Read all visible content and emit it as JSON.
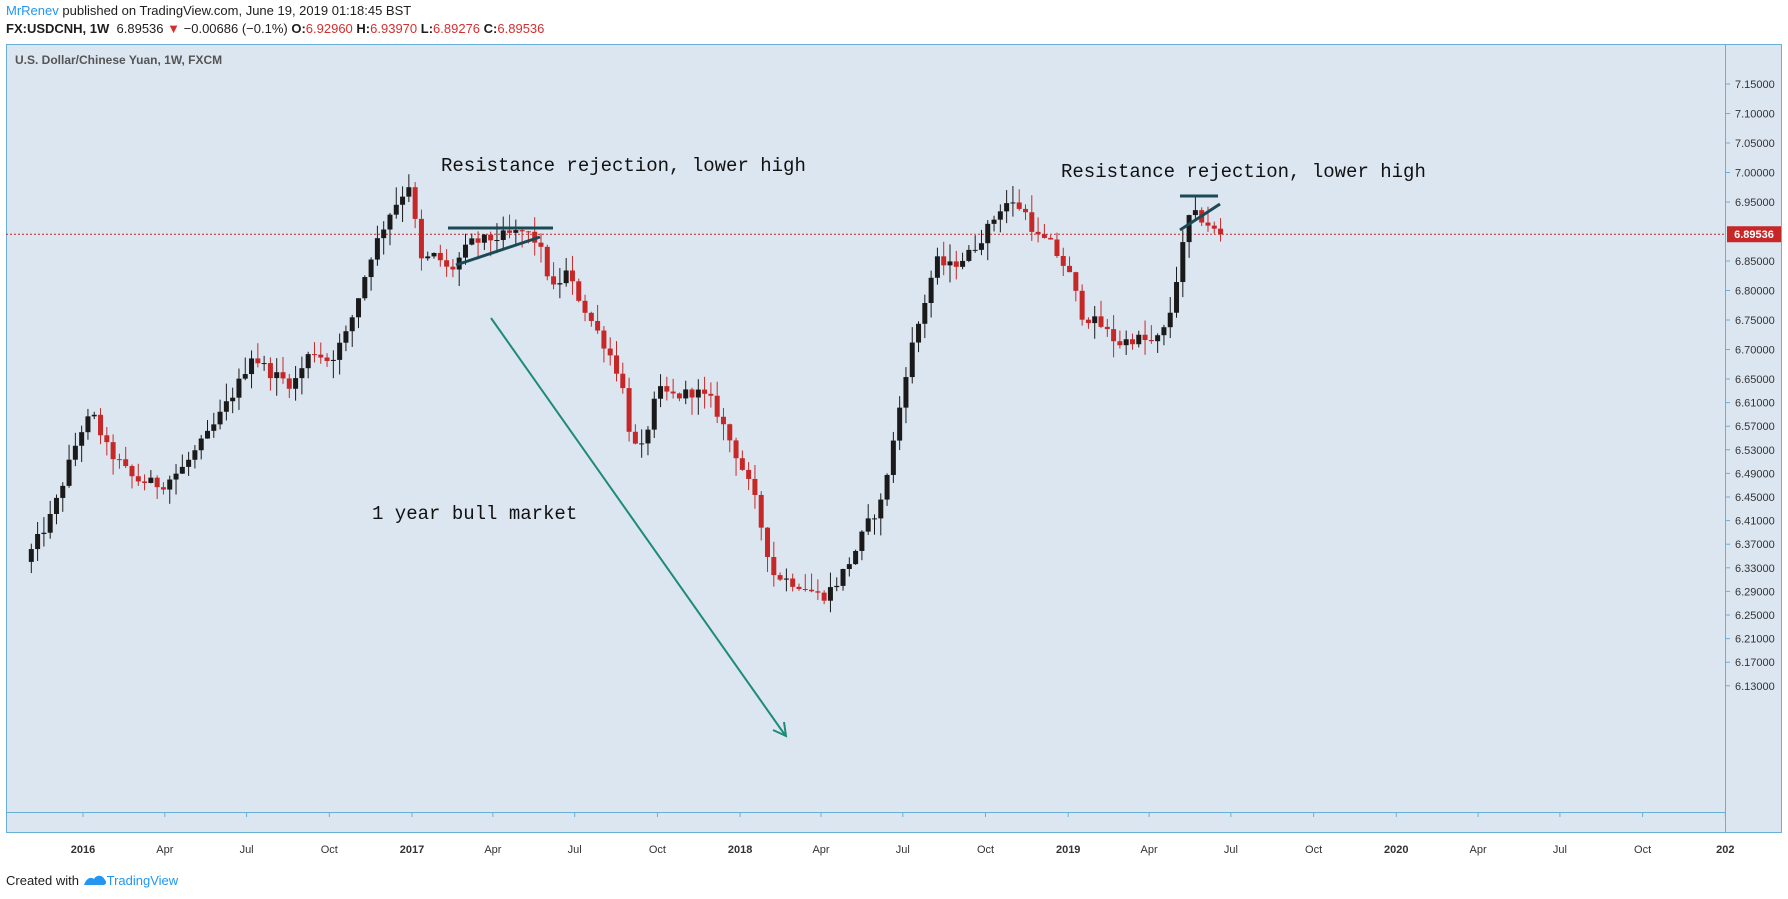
{
  "header": {
    "author": "MrRenev",
    "published": "published on TradingView.com, June 19, 2019 01:18:45 BST",
    "symbol": "FX:USDCNH, 1W",
    "last": "6.89536",
    "change": "−0.00686 (−0.1%)",
    "o_label": "O:",
    "o": "6.92960",
    "h_label": "H:",
    "h": "6.93970",
    "l_label": "L:",
    "l": "6.89276",
    "c_label": "C:",
    "c": "6.89536"
  },
  "footer": {
    "created_with": "Created with",
    "brand": "TradingView"
  },
  "colors": {
    "background": "#dce6f1",
    "border": "#6ab0d6",
    "up": "#1a1a1a",
    "down": "#c62828",
    "last_price_line": "#c62828",
    "arrow": "#1e8a78",
    "trendline": "#1b4a55"
  },
  "chart_data": {
    "type": "candlestick",
    "title": "U.S. Dollar/Chinese Yuan, 1W, FXCM",
    "x_ticks": [
      "2016",
      "Apr",
      "Jul",
      "Oct",
      "2017",
      "Apr",
      "Jul",
      "Oct",
      "2018",
      "Apr",
      "Jul",
      "Oct",
      "2019",
      "Apr",
      "Jul",
      "Oct",
      "2020",
      "Apr",
      "Jul",
      "Oct",
      "202"
    ],
    "y_ticks": [
      "7.15000",
      "7.10000",
      "7.05000",
      "7.00000",
      "6.95000",
      "6.85000",
      "6.80000",
      "6.75000",
      "6.70000",
      "6.65000",
      "6.61000",
      "6.57000",
      "6.53000",
      "6.49000",
      "6.45000",
      "6.41000",
      "6.37000",
      "6.33000",
      "6.29000",
      "6.25000",
      "6.21000",
      "6.17000",
      "6.13000"
    ],
    "last_price_label": "6.89536",
    "last_price": 6.89536,
    "annotations": [
      "Resistance rejection, lower high",
      "Resistance rejection, lower high",
      "1 year bull market"
    ],
    "price_path": [
      [
        "2015-11-01",
        6.34
      ],
      [
        "2015-12-01",
        6.42
      ],
      [
        "2016-01-01",
        6.56
      ],
      [
        "2016-01-15",
        6.59
      ],
      [
        "2016-02-01",
        6.53
      ],
      [
        "2016-03-01",
        6.48
      ],
      [
        "2016-04-01",
        6.47
      ],
      [
        "2016-04-25",
        6.5
      ],
      [
        "2016-05-25",
        6.56
      ],
      [
        "2016-06-25",
        6.64
      ],
      [
        "2016-07-10",
        6.69
      ],
      [
        "2016-08-01",
        6.66
      ],
      [
        "2016-08-25",
        6.64
      ],
      [
        "2016-09-15",
        6.7
      ],
      [
        "2016-10-05",
        6.68
      ],
      [
        "2016-10-25",
        6.73
      ],
      [
        "2016-11-20",
        6.86
      ],
      [
        "2016-12-10",
        6.93
      ],
      [
        "2017-01-01",
        6.98
      ],
      [
        "2017-01-15",
        6.85
      ],
      [
        "2017-02-01",
        6.86
      ],
      [
        "2017-02-15",
        6.83
      ],
      [
        "2017-03-10",
        6.88
      ],
      [
        "2017-04-10",
        6.89
      ],
      [
        "2017-05-10",
        6.9
      ],
      [
        "2017-05-25",
        6.88
      ],
      [
        "2017-06-10",
        6.8
      ],
      [
        "2017-06-25",
        6.83
      ],
      [
        "2017-07-15",
        6.77
      ],
      [
        "2017-08-10",
        6.7
      ],
      [
        "2017-08-25",
        6.65
      ],
      [
        "2017-09-05",
        6.55
      ],
      [
        "2017-09-15",
        6.52
      ],
      [
        "2017-10-05",
        6.63
      ],
      [
        "2017-10-25",
        6.62
      ],
      [
        "2017-11-15",
        6.63
      ],
      [
        "2017-12-05",
        6.61
      ],
      [
        "2018-01-01",
        6.52
      ],
      [
        "2018-01-20",
        6.45
      ],
      [
        "2018-02-10",
        6.32
      ],
      [
        "2018-02-25",
        6.31
      ],
      [
        "2018-03-15",
        6.3
      ],
      [
        "2018-04-05",
        6.28
      ],
      [
        "2018-04-20",
        6.3
      ],
      [
        "2018-05-10",
        6.35
      ],
      [
        "2018-05-25",
        6.4
      ],
      [
        "2018-06-10",
        6.44
      ],
      [
        "2018-06-25",
        6.55
      ],
      [
        "2018-07-10",
        6.68
      ],
      [
        "2018-07-25",
        6.76
      ],
      [
        "2018-08-10",
        6.85
      ],
      [
        "2018-08-25",
        6.84
      ],
      [
        "2018-09-15",
        6.86
      ],
      [
        "2018-10-05",
        6.9
      ],
      [
        "2018-10-25",
        6.95
      ],
      [
        "2018-11-15",
        6.94
      ],
      [
        "2018-12-01",
        6.89
      ],
      [
        "2018-12-15",
        6.88
      ],
      [
        "2019-01-05",
        6.83
      ],
      [
        "2019-01-20",
        6.76
      ],
      [
        "2019-02-10",
        6.74
      ],
      [
        "2019-03-01",
        6.71
      ],
      [
        "2019-03-20",
        6.72
      ],
      [
        "2019-04-10",
        6.71
      ],
      [
        "2019-04-25",
        6.74
      ],
      [
        "2019-05-10",
        6.86
      ],
      [
        "2019-05-20",
        6.93
      ],
      [
        "2019-06-05",
        6.92
      ],
      [
        "2019-06-19",
        6.89536
      ]
    ]
  }
}
